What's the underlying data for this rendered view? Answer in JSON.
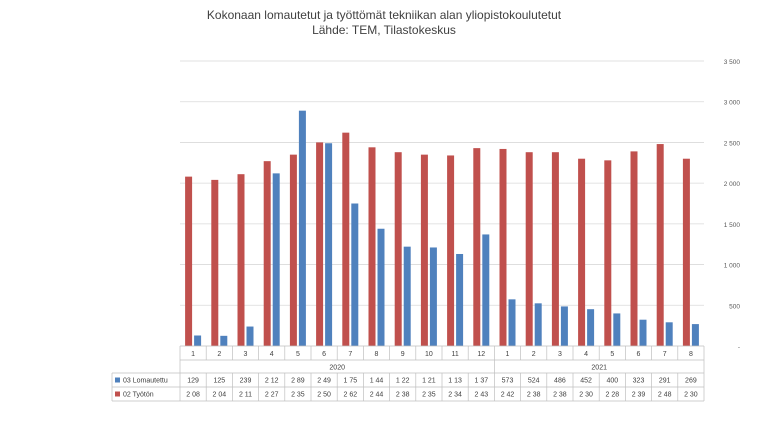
{
  "chart_data": {
    "type": "bar",
    "title": "Kokonaan lomautetut ja työttömät tekniikan alan yliopistokoulutetut",
    "subtitle": "Lähde: TEM, Tilastokeskus",
    "categories": [
      "1",
      "2",
      "3",
      "4",
      "5",
      "6",
      "7",
      "8",
      "9",
      "10",
      "11",
      "12",
      "1",
      "2",
      "3",
      "4",
      "5",
      "6",
      "7",
      "8"
    ],
    "groups": [
      {
        "label": "2020",
        "count": 12
      },
      {
        "label": "2021",
        "count": 8
      }
    ],
    "series": [
      {
        "name": "03 Lomautettu",
        "color": "#4F81BD",
        "values": [
          129,
          125,
          239,
          2120,
          2890,
          2490,
          1750,
          1440,
          1220,
          1210,
          1130,
          1370,
          573,
          524,
          486,
          452,
          400,
          323,
          291,
          269
        ],
        "table_labels": [
          "129",
          "125",
          "239",
          "2 12",
          "2 89",
          "2 49",
          "1 75",
          "1 44",
          "1 22",
          "1 21",
          "1 13",
          "1 37",
          "573",
          "524",
          "486",
          "452",
          "400",
          "323",
          "291",
          "269"
        ]
      },
      {
        "name": "02 Työtön",
        "color": "#C0504D",
        "values": [
          2080,
          2040,
          2110,
          2270,
          2350,
          2500,
          2620,
          2440,
          2380,
          2350,
          2340,
          2430,
          2420,
          2380,
          2380,
          2300,
          2280,
          2390,
          2480,
          2300
        ],
        "table_labels": [
          "2 08",
          "2 04",
          "2 11",
          "2 27",
          "2 35",
          "2 50",
          "2 62",
          "2 44",
          "2 38",
          "2 35",
          "2 34",
          "2 43",
          "2 42",
          "2 38",
          "2 38",
          "2 30",
          "2 28",
          "2 39",
          "2 48",
          "2 30"
        ]
      }
    ],
    "ylim": [
      0,
      3500
    ],
    "yticks": [
      0,
      500,
      1000,
      1500,
      2000,
      2500,
      3000,
      3500
    ],
    "ytick_labels": [
      "-",
      "500",
      "1 000",
      "1 500",
      "2 000",
      "2 500",
      "3 000",
      "3 500"
    ],
    "yaxis_position": "right",
    "grid": true,
    "legend": "data-table"
  }
}
